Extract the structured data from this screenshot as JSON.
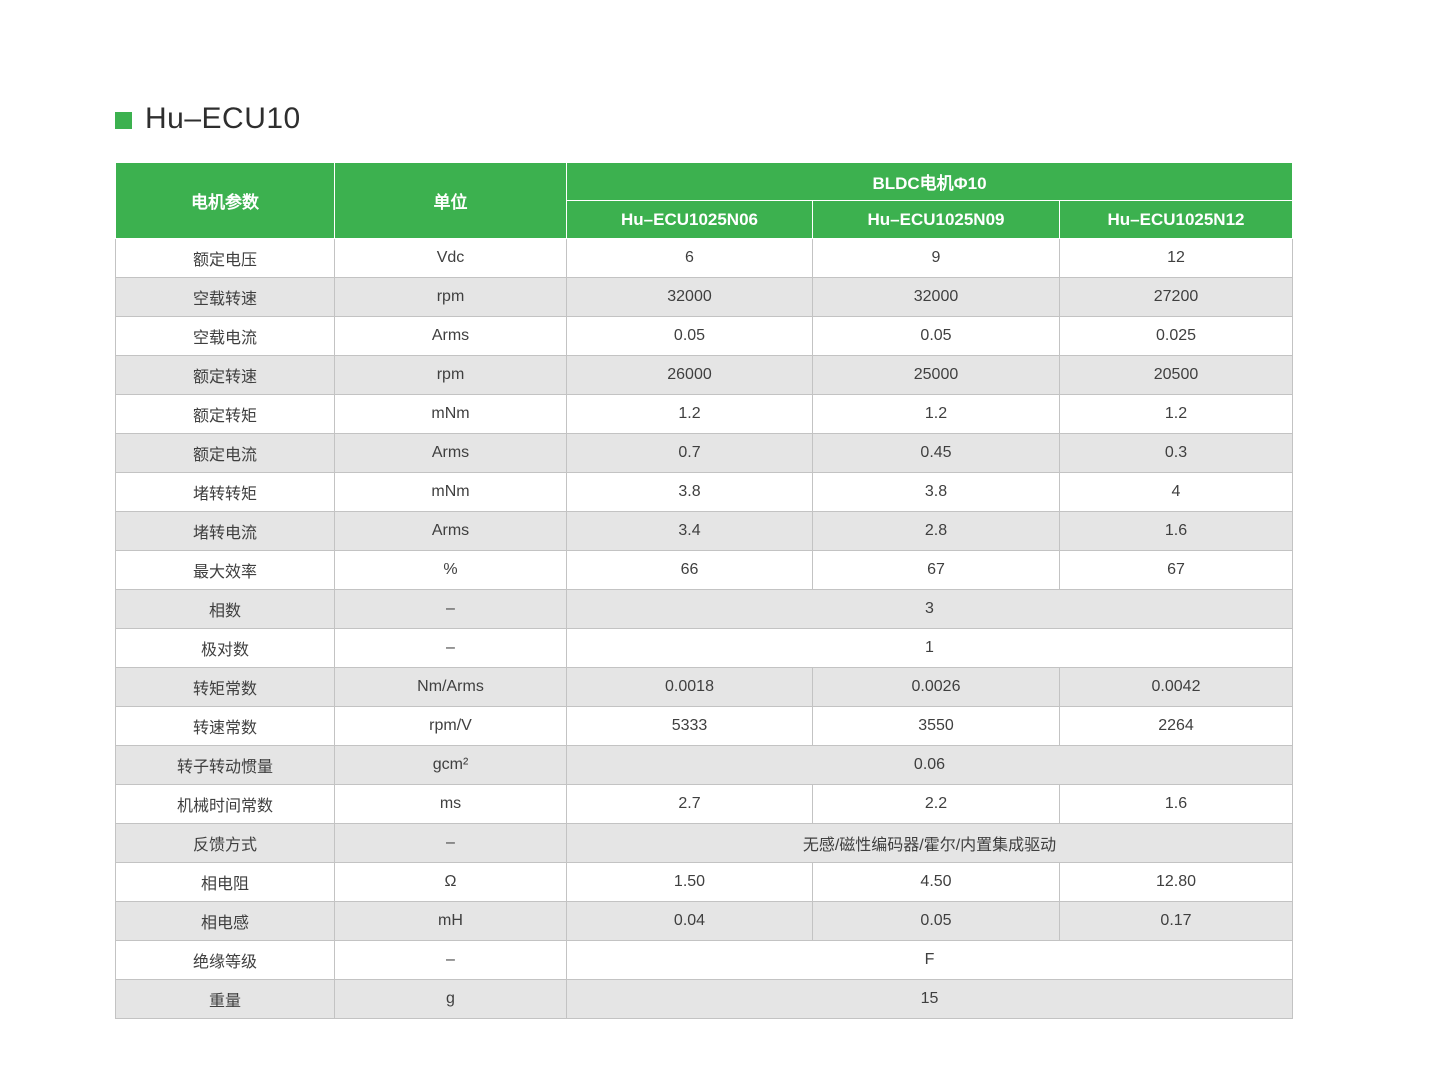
{
  "title": {
    "bullet_color": "#3cb14f",
    "text": "Hu–ECU10"
  },
  "colors": {
    "header_green": "#3cb14f",
    "row_alt_gray": "#e5e5e5",
    "border_gray": "#c3c3c3",
    "text_dark": "#3f3f3f"
  },
  "table": {
    "param_header": "电机参数",
    "unit_header": "单位",
    "group_header": "BLDC电机Φ10",
    "models": [
      "Hu–ECU1025N06",
      "Hu–ECU1025N09",
      "Hu–ECU1025N12"
    ],
    "rows": [
      {
        "param": "额定电压",
        "unit": "Vdc",
        "values": [
          "6",
          "9",
          "12"
        ]
      },
      {
        "param": "空载转速",
        "unit": "rpm",
        "values": [
          "32000",
          "32000",
          "27200"
        ]
      },
      {
        "param": "空载电流",
        "unit": "Arms",
        "values": [
          "0.05",
          "0.05",
          "0.025"
        ]
      },
      {
        "param": "额定转速",
        "unit": "rpm",
        "values": [
          "26000",
          "25000",
          "20500"
        ]
      },
      {
        "param": "额定转矩",
        "unit": "mNm",
        "values": [
          "1.2",
          "1.2",
          "1.2"
        ]
      },
      {
        "param": "额定电流",
        "unit": "Arms",
        "values": [
          "0.7",
          "0.45",
          "0.3"
        ]
      },
      {
        "param": "堵转转矩",
        "unit": "mNm",
        "values": [
          "3.8",
          "3.8",
          "4"
        ]
      },
      {
        "param": "堵转电流",
        "unit": "Arms",
        "values": [
          "3.4",
          "2.8",
          "1.6"
        ]
      },
      {
        "param": "最大效率",
        "unit": "%",
        "values": [
          "66",
          "67",
          "67"
        ]
      },
      {
        "param": "相数",
        "unit": "–",
        "values": [
          "3"
        ]
      },
      {
        "param": "极对数",
        "unit": "–",
        "values": [
          "1"
        ]
      },
      {
        "param": "转矩常数",
        "unit": "Nm/Arms",
        "values": [
          "0.0018",
          "0.0026",
          "0.0042"
        ]
      },
      {
        "param": "转速常数",
        "unit": "rpm/V",
        "values": [
          "5333",
          "3550",
          "2264"
        ]
      },
      {
        "param": "转子转动惯量",
        "unit": "gcm²",
        "values": [
          "0.06"
        ]
      },
      {
        "param": "机械时间常数",
        "unit": "ms",
        "values": [
          "2.7",
          "2.2",
          "1.6"
        ]
      },
      {
        "param": "反馈方式",
        "unit": "–",
        "values": [
          "无感/磁性编码器/霍尔/内置集成驱动"
        ]
      },
      {
        "param": "相电阻",
        "unit": "Ω",
        "values": [
          "1.50",
          "4.50",
          "12.80"
        ]
      },
      {
        "param": "相电感",
        "unit": "mH",
        "values": [
          "0.04",
          "0.05",
          "0.17"
        ]
      },
      {
        "param": "绝缘等级",
        "unit": "–",
        "values": [
          "F"
        ]
      },
      {
        "param": "重量",
        "unit": "g",
        "values": [
          "15"
        ]
      }
    ]
  }
}
